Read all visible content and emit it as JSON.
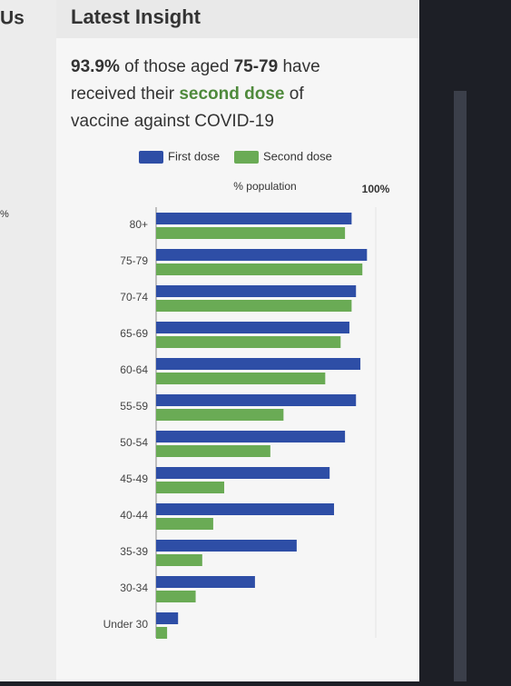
{
  "sidebar": {
    "title": "Us",
    "axis_label": "%"
  },
  "title": "Latest Insight",
  "headline": [
    [
      {
        "text": "93.9%",
        "bold": true
      },
      {
        "text": " of those aged "
      },
      {
        "text": "75-79",
        "bold": true
      },
      {
        "text": " have"
      }
    ],
    [
      {
        "text": "received their "
      },
      {
        "text": "second dose",
        "bold": true,
        "color": "#4f8a3c"
      },
      {
        "text": " of"
      }
    ],
    [
      {
        "text": "vaccine against COVID-19"
      }
    ]
  ],
  "chart_data": {
    "type": "bar",
    "orientation": "horizontal",
    "categories": [
      "80+",
      "75-79",
      "70-74",
      "65-69",
      "60-64",
      "55-59",
      "50-54",
      "45-49",
      "40-44",
      "35-39",
      "30-34",
      "Under 30"
    ],
    "series": [
      {
        "name": "First dose",
        "color": "#2e4ea6",
        "values": [
          89,
          96,
          91,
          88,
          93,
          91,
          86,
          79,
          81,
          64,
          45,
          10
        ]
      },
      {
        "name": "Second dose",
        "color": "#6aab55",
        "values": [
          86,
          93.9,
          89,
          84,
          77,
          58,
          52,
          31,
          26,
          21,
          18,
          5
        ]
      }
    ],
    "x_label": "% population",
    "xlim": [
      0,
      100
    ],
    "xticks": [
      {
        "value": 100,
        "label": "100%"
      }
    ]
  }
}
